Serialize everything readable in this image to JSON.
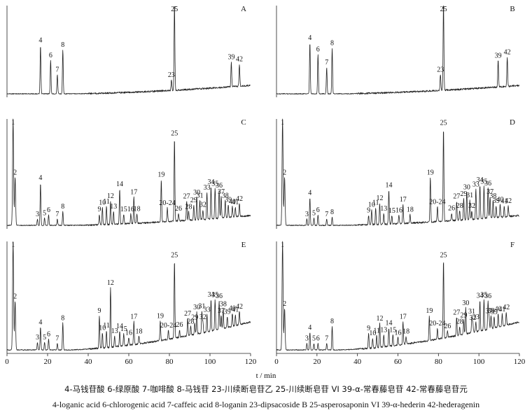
{
  "chart_data": {
    "type": "line",
    "xlabel": "t / min",
    "xlim": [
      0,
      120
    ],
    "xticks": [
      0,
      20,
      40,
      60,
      80,
      100,
      120
    ],
    "panels": [
      {
        "id": "A",
        "peaks": [
          {
            "label": "4",
            "t": 16.5,
            "h": 0.55
          },
          {
            "label": "6",
            "t": 21.5,
            "h": 0.38
          },
          {
            "label": "7",
            "t": 24.8,
            "h": 0.22
          },
          {
            "label": "8",
            "t": 27.5,
            "h": 0.5
          },
          {
            "label": "23",
            "t": 81.0,
            "h": 0.12
          },
          {
            "label": "25",
            "t": 82.5,
            "h": 1.0
          },
          {
            "label": "39",
            "t": 110.5,
            "h": 0.28
          },
          {
            "label": "42",
            "t": 114.5,
            "h": 0.25
          }
        ]
      },
      {
        "id": "B",
        "peaks": [
          {
            "label": "4",
            "t": 16.5,
            "h": 0.58
          },
          {
            "label": "6",
            "t": 20.5,
            "h": 0.45
          },
          {
            "label": "7",
            "t": 24.8,
            "h": 0.3
          },
          {
            "label": "8",
            "t": 27.5,
            "h": 0.52
          },
          {
            "label": "23",
            "t": 81.0,
            "h": 0.18
          },
          {
            "label": "25",
            "t": 82.5,
            "h": 1.0
          },
          {
            "label": "39",
            "t": 109.5,
            "h": 0.3
          },
          {
            "label": "42",
            "t": 114.0,
            "h": 0.33
          }
        ]
      },
      {
        "id": "C",
        "peaks": [
          {
            "label": "1",
            "t": 3.0,
            "h": 1.0
          },
          {
            "label": "2",
            "t": 4.0,
            "h": 0.45
          },
          {
            "label": "3",
            "t": 15.0,
            "h": 0.06
          },
          {
            "label": "4",
            "t": 16.5,
            "h": 0.4
          },
          {
            "label": "5",
            "t": 18.5,
            "h": 0.07
          },
          {
            "label": "6",
            "t": 20.5,
            "h": 0.1
          },
          {
            "label": "7",
            "t": 24.8,
            "h": 0.06
          },
          {
            "label": "8",
            "t": 27.5,
            "h": 0.13
          },
          {
            "label": "9",
            "t": 45.5,
            "h": 0.1
          },
          {
            "label": "10",
            "t": 47.0,
            "h": 0.16
          },
          {
            "label": "11",
            "t": 49.0,
            "h": 0.17
          },
          {
            "label": "12",
            "t": 51.0,
            "h": 0.22
          },
          {
            "label": "13",
            "t": 52.5,
            "h": 0.12
          },
          {
            "label": "14",
            "t": 55.5,
            "h": 0.33
          },
          {
            "label": "15",
            "t": 57.5,
            "h": 0.09
          },
          {
            "label": "16",
            "t": 61.0,
            "h": 0.09
          },
          {
            "label": "17",
            "t": 62.5,
            "h": 0.25
          },
          {
            "label": "18",
            "t": 64.0,
            "h": 0.09
          },
          {
            "label": "19",
            "t": 76.0,
            "h": 0.4
          },
          {
            "label": "20-24",
            "t": 79.0,
            "h": 0.13
          },
          {
            "label": "25",
            "t": 82.5,
            "h": 0.78
          },
          {
            "label": "26",
            "t": 84.5,
            "h": 0.07
          },
          {
            "label": "27",
            "t": 88.5,
            "h": 0.18
          },
          {
            "label": "28",
            "t": 89.5,
            "h": 0.08
          },
          {
            "label": "29",
            "t": 92.0,
            "h": 0.14
          },
          {
            "label": "30",
            "t": 93.5,
            "h": 0.21
          },
          {
            "label": "31",
            "t": 95.0,
            "h": 0.18
          },
          {
            "label": "32",
            "t": 96.5,
            "h": 0.09
          },
          {
            "label": "33",
            "t": 98.5,
            "h": 0.25
          },
          {
            "label": "34",
            "t": 100.5,
            "h": 0.3
          },
          {
            "label": "35",
            "t": 102.5,
            "h": 0.28
          },
          {
            "label": "36",
            "t": 104.5,
            "h": 0.26
          },
          {
            "label": "37",
            "t": 105.5,
            "h": 0.2
          },
          {
            "label": "38",
            "t": 107.5,
            "h": 0.16
          },
          {
            "label": "39",
            "t": 109.0,
            "h": 0.12
          },
          {
            "label": "40",
            "t": 111.0,
            "h": 0.1
          },
          {
            "label": "41",
            "t": 112.5,
            "h": 0.09
          },
          {
            "label": "42",
            "t": 114.5,
            "h": 0.12
          }
        ]
      },
      {
        "id": "D",
        "peaks": [
          {
            "label": "1",
            "t": 3.0,
            "h": 1.0
          },
          {
            "label": "2",
            "t": 4.0,
            "h": 0.45
          },
          {
            "label": "3",
            "t": 15.0,
            "h": 0.06
          },
          {
            "label": "4",
            "t": 16.5,
            "h": 0.26
          },
          {
            "label": "5",
            "t": 18.5,
            "h": 0.07
          },
          {
            "label": "6",
            "t": 20.5,
            "h": 0.1
          },
          {
            "label": "7",
            "t": 24.8,
            "h": 0.06
          },
          {
            "label": "8",
            "t": 27.5,
            "h": 0.08
          },
          {
            "label": "9",
            "t": 45.5,
            "h": 0.09
          },
          {
            "label": "10",
            "t": 47.0,
            "h": 0.14
          },
          {
            "label": "11",
            "t": 49.0,
            "h": 0.16
          },
          {
            "label": "12",
            "t": 51.0,
            "h": 0.2
          },
          {
            "label": "13",
            "t": 53.0,
            "h": 0.1
          },
          {
            "label": "14",
            "t": 55.5,
            "h": 0.32
          },
          {
            "label": "15",
            "t": 57.0,
            "h": 0.08
          },
          {
            "label": "16",
            "t": 60.5,
            "h": 0.08
          },
          {
            "label": "17",
            "t": 62.5,
            "h": 0.18
          },
          {
            "label": "18",
            "t": 66.0,
            "h": 0.08
          },
          {
            "label": "19",
            "t": 76.0,
            "h": 0.42
          },
          {
            "label": "20-24",
            "t": 79.5,
            "h": 0.14
          },
          {
            "label": "25",
            "t": 82.5,
            "h": 0.88
          },
          {
            "label": "26",
            "t": 86.5,
            "h": 0.07
          },
          {
            "label": "27",
            "t": 89.0,
            "h": 0.18
          },
          {
            "label": "28",
            "t": 90.5,
            "h": 0.09
          },
          {
            "label": "29",
            "t": 92.5,
            "h": 0.2
          },
          {
            "label": "30",
            "t": 94.0,
            "h": 0.26
          },
          {
            "label": "31",
            "t": 95.5,
            "h": 0.18
          },
          {
            "label": "32",
            "t": 96.5,
            "h": 0.08
          },
          {
            "label": "33",
            "t": 98.5,
            "h": 0.28
          },
          {
            "label": "34",
            "t": 100.5,
            "h": 0.32
          },
          {
            "label": "35",
            "t": 102.5,
            "h": 0.3
          },
          {
            "label": "36",
            "t": 104.5,
            "h": 0.28
          },
          {
            "label": "37",
            "t": 105.5,
            "h": 0.2
          },
          {
            "label": "38",
            "t": 107.0,
            "h": 0.16
          },
          {
            "label": "39",
            "t": 108.5,
            "h": 0.11
          },
          {
            "label": "40",
            "t": 110.5,
            "h": 0.12
          },
          {
            "label": "41",
            "t": 112.5,
            "h": 0.1
          },
          {
            "label": "42",
            "t": 114.5,
            "h": 0.1
          }
        ]
      },
      {
        "id": "E",
        "peaks": [
          {
            "label": "1",
            "t": 3.0,
            "h": 1.0
          },
          {
            "label": "2",
            "t": 4.0,
            "h": 0.45
          },
          {
            "label": "3",
            "t": 15.0,
            "h": 0.07
          },
          {
            "label": "4",
            "t": 16.5,
            "h": 0.21
          },
          {
            "label": "5",
            "t": 18.5,
            "h": 0.07
          },
          {
            "label": "6",
            "t": 20.5,
            "h": 0.1
          },
          {
            "label": "7",
            "t": 24.8,
            "h": 0.06
          },
          {
            "label": "8",
            "t": 27.5,
            "h": 0.25
          },
          {
            "label": "9",
            "t": 45.5,
            "h": 0.3
          },
          {
            "label": "10",
            "t": 47.0,
            "h": 0.14
          },
          {
            "label": "11",
            "t": 49.0,
            "h": 0.16
          },
          {
            "label": "12",
            "t": 51.0,
            "h": 0.55
          },
          {
            "label": "13",
            "t": 53.0,
            "h": 0.1
          },
          {
            "label": "14",
            "t": 55.5,
            "h": 0.14
          },
          {
            "label": "15",
            "t": 57.5,
            "h": 0.11
          },
          {
            "label": "16",
            "t": 60.0,
            "h": 0.07
          },
          {
            "label": "17",
            "t": 62.5,
            "h": 0.21
          },
          {
            "label": "18",
            "t": 65.0,
            "h": 0.07
          },
          {
            "label": "19",
            "t": 75.5,
            "h": 0.18
          },
          {
            "label": "20-24",
            "t": 79.5,
            "h": 0.08
          },
          {
            "label": "25",
            "t": 82.5,
            "h": 0.72
          },
          {
            "label": "26",
            "t": 85.0,
            "h": 0.07
          },
          {
            "label": "27",
            "t": 89.0,
            "h": 0.16
          },
          {
            "label": "28",
            "t": 90.5,
            "h": 0.08
          },
          {
            "label": "29",
            "t": 92.5,
            "h": 0.11
          },
          {
            "label": "30",
            "t": 93.5,
            "h": 0.2
          },
          {
            "label": "31",
            "t": 96.0,
            "h": 0.2
          },
          {
            "label": "32",
            "t": 96.5,
            "h": 0.1
          },
          {
            "label": "33",
            "t": 98.5,
            "h": 0.16
          },
          {
            "label": "34",
            "t": 100.5,
            "h": 0.29
          },
          {
            "label": "35",
            "t": 102.5,
            "h": 0.28
          },
          {
            "label": "36",
            "t": 104.5,
            "h": 0.26
          },
          {
            "label": "37",
            "t": 105.5,
            "h": 0.12
          },
          {
            "label": "38",
            "t": 106.5,
            "h": 0.18
          },
          {
            "label": "39",
            "t": 108.5,
            "h": 0.1
          },
          {
            "label": "40",
            "t": 111.0,
            "h": 0.12
          },
          {
            "label": "41",
            "t": 112.5,
            "h": 0.1
          },
          {
            "label": "42",
            "t": 114.5,
            "h": 0.12
          }
        ]
      },
      {
        "id": "F",
        "peaks": [
          {
            "label": "1",
            "t": 3.0,
            "h": 1.0
          },
          {
            "label": "2",
            "t": 4.0,
            "h": 0.38
          },
          {
            "label": "3",
            "t": 15.0,
            "h": 0.06
          },
          {
            "label": "4",
            "t": 16.5,
            "h": 0.16
          },
          {
            "label": "5",
            "t": 18.5,
            "h": 0.06
          },
          {
            "label": "6",
            "t": 20.5,
            "h": 0.06
          },
          {
            "label": "7",
            "t": 24.8,
            "h": 0.06
          },
          {
            "label": "8",
            "t": 27.5,
            "h": 0.22
          },
          {
            "label": "9",
            "t": 45.5,
            "h": 0.14
          },
          {
            "label": "10",
            "t": 47.5,
            "h": 0.09
          },
          {
            "label": "11",
            "t": 49.5,
            "h": 0.11
          },
          {
            "label": "12",
            "t": 51.0,
            "h": 0.22
          },
          {
            "label": "13",
            "t": 53.0,
            "h": 0.11
          },
          {
            "label": "14",
            "t": 55.5,
            "h": 0.17
          },
          {
            "label": "15",
            "t": 57.5,
            "h": 0.1
          },
          {
            "label": "16",
            "t": 60.0,
            "h": 0.07
          },
          {
            "label": "17",
            "t": 62.5,
            "h": 0.21
          },
          {
            "label": "18",
            "t": 64.0,
            "h": 0.07
          },
          {
            "label": "19",
            "t": 75.5,
            "h": 0.23
          },
          {
            "label": "20-24",
            "t": 79.5,
            "h": 0.1
          },
          {
            "label": "25",
            "t": 82.5,
            "h": 0.72
          },
          {
            "label": "26",
            "t": 84.5,
            "h": 0.06
          },
          {
            "label": "27",
            "t": 89.0,
            "h": 0.17
          },
          {
            "label": "28",
            "t": 90.5,
            "h": 0.08
          },
          {
            "label": "29",
            "t": 92.5,
            "h": 0.13
          },
          {
            "label": "30",
            "t": 93.5,
            "h": 0.24
          },
          {
            "label": "31",
            "t": 96.5,
            "h": 0.15
          },
          {
            "label": "32",
            "t": 97.0,
            "h": 0.09
          },
          {
            "label": "33",
            "t": 98.5,
            "h": 0.09
          },
          {
            "label": "34",
            "t": 100.5,
            "h": 0.28
          },
          {
            "label": "35",
            "t": 102.5,
            "h": 0.28
          },
          {
            "label": "36",
            "t": 104.5,
            "h": 0.26
          },
          {
            "label": "37",
            "t": 105.0,
            "h": 0.12
          },
          {
            "label": "38",
            "t": 106.0,
            "h": 0.12
          },
          {
            "label": "39",
            "t": 107.5,
            "h": 0.1
          },
          {
            "label": "40",
            "t": 109.5,
            "h": 0.12
          },
          {
            "label": "41",
            "t": 111.5,
            "h": 0.11
          },
          {
            "label": "42",
            "t": 113.5,
            "h": 0.12
          }
        ]
      }
    ]
  },
  "caption": {
    "zh": "4-马钱苷酸   6-绿原酸   7-咖啡酸   8-马钱苷   23-川续断皂苷乙   25-川续断皂苷 VI   39-α-常春藤皂苷   42-常春藤皂苷元",
    "en": "4-loganic acid   6-chlorogenic acid   7-caffeic acid   8-loganin   23-dipsacoside B   25-asperosaponin VI   39-α-hederin   42-hederagenin"
  }
}
